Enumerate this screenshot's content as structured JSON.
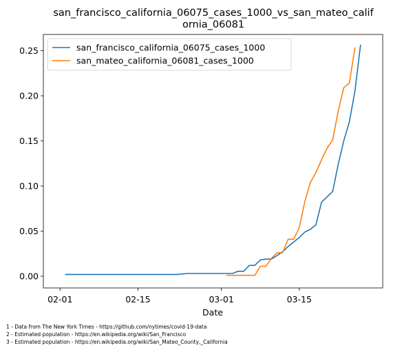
{
  "chart_data": {
    "type": "line",
    "title_line1": "san_francisco_california_06075_cases_1000_vs_san_mateo_calif",
    "title_line2": "ornia_06081",
    "xlabel": "Date",
    "ylabel": "",
    "x_ticks": [
      "02-01",
      "02-15",
      "03-01",
      "03-15"
    ],
    "y_ticks": [
      "0.00",
      "0.05",
      "0.10",
      "0.15",
      "0.20",
      "0.25"
    ],
    "xlim": [
      "2020-01-29",
      "2020-03-30"
    ],
    "ylim": [
      -0.013,
      0.268
    ],
    "grid": false,
    "legend_position": "top-left",
    "series": [
      {
        "name": "san_francisco_california_06075_cases_1000",
        "color": "#1f77b4",
        "points": [
          [
            "2020-02-02",
            0.002
          ],
          [
            "2020-02-22",
            0.002
          ],
          [
            "2020-02-23",
            0.0025
          ],
          [
            "2020-02-24",
            0.003
          ],
          [
            "2020-03-03",
            0.003
          ],
          [
            "2020-03-04",
            0.0055
          ],
          [
            "2020-03-05",
            0.0055
          ],
          [
            "2020-03-06",
            0.012
          ],
          [
            "2020-03-07",
            0.012
          ],
          [
            "2020-03-08",
            0.018
          ],
          [
            "2020-03-09",
            0.019
          ],
          [
            "2020-03-10",
            0.019
          ],
          [
            "2020-03-11",
            0.023
          ],
          [
            "2020-03-12",
            0.027
          ],
          [
            "2020-03-13",
            0.033
          ],
          [
            "2020-03-14",
            0.038
          ],
          [
            "2020-03-15",
            0.043
          ],
          [
            "2020-03-16",
            0.049
          ],
          [
            "2020-03-17",
            0.052
          ],
          [
            "2020-03-18",
            0.057
          ],
          [
            "2020-03-19",
            0.082
          ],
          [
            "2020-03-20",
            0.088
          ],
          [
            "2020-03-21",
            0.094
          ],
          [
            "2020-03-22",
            0.124
          ],
          [
            "2020-03-23",
            0.15
          ],
          [
            "2020-03-24",
            0.171
          ],
          [
            "2020-03-25",
            0.205
          ],
          [
            "2020-03-26",
            0.256
          ]
        ]
      },
      {
        "name": "san_mateo_california_06081_cases_1000",
        "color": "#ff7f0e",
        "points": [
          [
            "2020-03-02",
            0.001
          ],
          [
            "2020-03-07",
            0.001
          ],
          [
            "2020-03-08",
            0.011
          ],
          [
            "2020-03-09",
            0.011
          ],
          [
            "2020-03-10",
            0.02
          ],
          [
            "2020-03-11",
            0.026
          ],
          [
            "2020-03-12",
            0.026
          ],
          [
            "2020-03-13",
            0.041
          ],
          [
            "2020-03-14",
            0.041
          ],
          [
            "2020-03-15",
            0.054
          ],
          [
            "2020-03-16",
            0.083
          ],
          [
            "2020-03-17",
            0.104
          ],
          [
            "2020-03-18",
            0.115
          ],
          [
            "2020-03-19",
            0.129
          ],
          [
            "2020-03-20",
            0.142
          ],
          [
            "2020-03-21",
            0.151
          ],
          [
            "2020-03-22",
            0.183
          ],
          [
            "2020-03-23",
            0.209
          ],
          [
            "2020-03-24",
            0.214
          ],
          [
            "2020-03-25",
            0.253
          ]
        ]
      }
    ]
  },
  "footnotes": [
    "1 - Data from The New York Times - https://github.com/nytimes/covid-19-data",
    "2 - Estimated population - https://en.wikipedia.org/wiki/San_Francisco",
    "3 - Estimated population - https://en.wikipedia.org/wiki/San_Mateo_County,_California"
  ]
}
